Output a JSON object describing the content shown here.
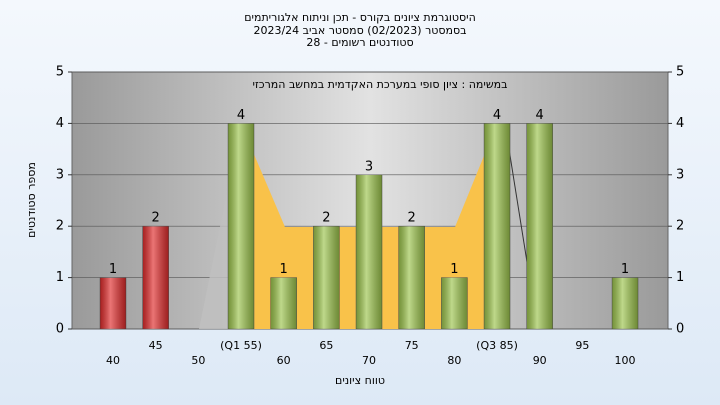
{
  "chart_data": {
    "type": "bar",
    "title": "היסטוגרמת ציונים בקורס - תכן וניתוח אלגוריתמים",
    "subtitle": "בסמסטר (02/2023) סמסטר אביב 2023/24",
    "subtitle2": "סטודנטים רשומים - 28",
    "annotation": "במשימה : ציון סופי במערכת האקדמית במחשב המרכזי",
    "x_label": "טווח ציונים",
    "y_label": "מספר סטודנטים",
    "categories": [
      "40",
      "45",
      "50",
      "(Q1 55)",
      "60",
      "65",
      "70",
      "75",
      "80",
      "(Q3 85)",
      "90",
      "95",
      "100"
    ],
    "values": [
      1,
      2,
      0,
      4,
      1,
      2,
      3,
      2,
      1,
      4,
      4,
      0,
      1
    ],
    "colors": [
      "#e02b2b",
      "#e02b2b",
      "#9cc44c",
      "#9cc44c",
      "#9cc44c",
      "#9cc44c",
      "#9cc44c",
      "#9cc44c",
      "#9cc44c",
      "#9cc44c",
      "#9cc44c",
      "#9cc44c",
      "#9cc44c"
    ],
    "ylim": [
      0,
      5
    ],
    "yticks": [
      0,
      1,
      2,
      3,
      4,
      5
    ],
    "y2lim": [
      0,
      5
    ],
    "y2ticks": [
      0,
      1,
      2,
      3,
      4,
      5
    ],
    "grid": true
  }
}
